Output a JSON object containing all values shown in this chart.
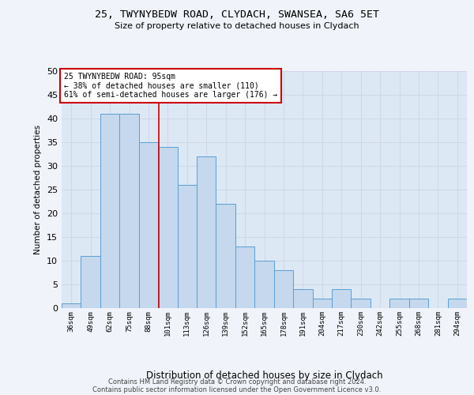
{
  "title_line1": "25, TWYNYBEDW ROAD, CLYDACH, SWANSEA, SA6 5ET",
  "title_line2": "Size of property relative to detached houses in Clydach",
  "xlabel": "Distribution of detached houses by size in Clydach",
  "ylabel": "Number of detached properties",
  "categories": [
    "36sqm",
    "49sqm",
    "62sqm",
    "75sqm",
    "88sqm",
    "101sqm",
    "113sqm",
    "126sqm",
    "139sqm",
    "152sqm",
    "165sqm",
    "178sqm",
    "191sqm",
    "204sqm",
    "217sqm",
    "230sqm",
    "242sqm",
    "255sqm",
    "268sqm",
    "281sqm",
    "294sqm"
  ],
  "values": [
    1,
    11,
    41,
    41,
    35,
    34,
    26,
    32,
    22,
    13,
    10,
    8,
    4,
    2,
    4,
    2,
    0,
    2,
    2,
    0,
    2
  ],
  "bar_color": "#c5d8ed",
  "bar_edge_color": "#5a9fd4",
  "grid_color": "#d0d8e8",
  "background_color": "#dde8f5",
  "fig_background_color": "#f0f4fa",
  "annotation_text": "25 TWYNYBEDW ROAD: 95sqm\n← 38% of detached houses are smaller (110)\n61% of semi-detached houses are larger (176) →",
  "annotation_box_color": "#ffffff",
  "annotation_edge_color": "#cc0000",
  "property_line_x": 4.54,
  "ylim": [
    0,
    50
  ],
  "yticks": [
    0,
    5,
    10,
    15,
    20,
    25,
    30,
    35,
    40,
    45,
    50
  ],
  "footer_line1": "Contains HM Land Registry data © Crown copyright and database right 2024.",
  "footer_line2": "Contains public sector information licensed under the Open Government Licence v3.0."
}
